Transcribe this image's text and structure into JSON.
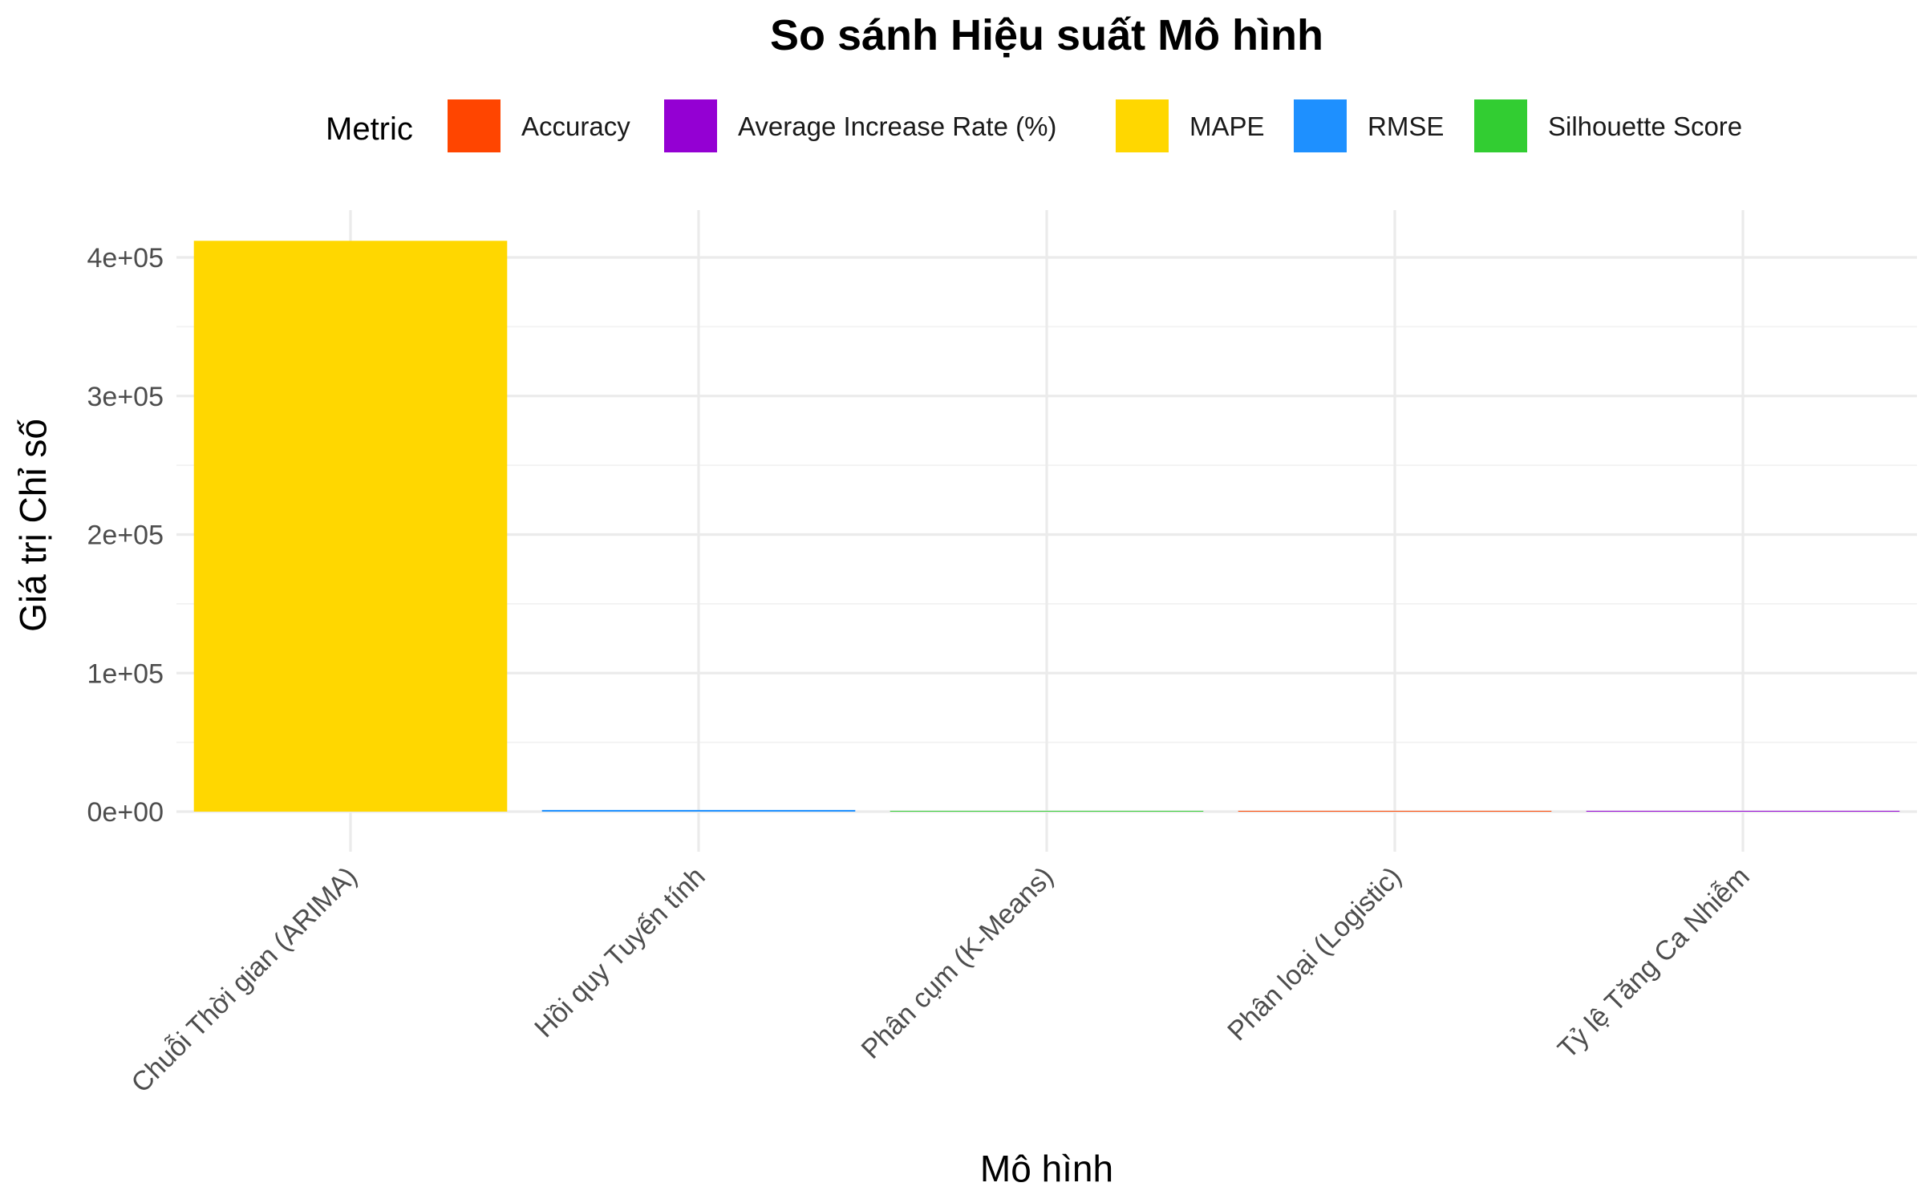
{
  "chart_data": {
    "type": "bar",
    "title": "So sánh Hiệu suất Mô hình",
    "xlabel": "Mô hình",
    "ylabel": "Giá trị Chỉ số",
    "categories": [
      "Chuỗi Thời gian (ARIMA)",
      "Hồi quy Tuyến tính",
      "Phân cụm (K-Means)",
      "Phân loại (Logistic)",
      "Tỷ lệ Tăng Ca Nhiễm"
    ],
    "series": [
      {
        "name": "Accuracy",
        "color": "#FF4500",
        "values": [
          null,
          null,
          null,
          0.85,
          null
        ]
      },
      {
        "name": "Average Increase Rate (%)",
        "color": "#9400D3",
        "values": [
          null,
          null,
          null,
          null,
          3.5
        ]
      },
      {
        "name": "MAPE",
        "color": "#FFD700",
        "values": [
          412000,
          null,
          null,
          null,
          null
        ]
      },
      {
        "name": "RMSE",
        "color": "#1E90FF",
        "values": [
          null,
          1200,
          null,
          null,
          null
        ]
      },
      {
        "name": "Silhouette Score",
        "color": "#32CD32",
        "values": [
          null,
          null,
          0.45,
          null,
          null
        ]
      }
    ],
    "ylim": [
      0,
      430000
    ],
    "yticks": [
      0,
      100000,
      200000,
      300000,
      400000
    ],
    "ytick_labels": [
      "0e+00",
      "1e+05",
      "2e+05",
      "3e+05",
      "4e+05"
    ],
    "legend": {
      "title": "Metric",
      "position": "top"
    },
    "grid": true
  }
}
